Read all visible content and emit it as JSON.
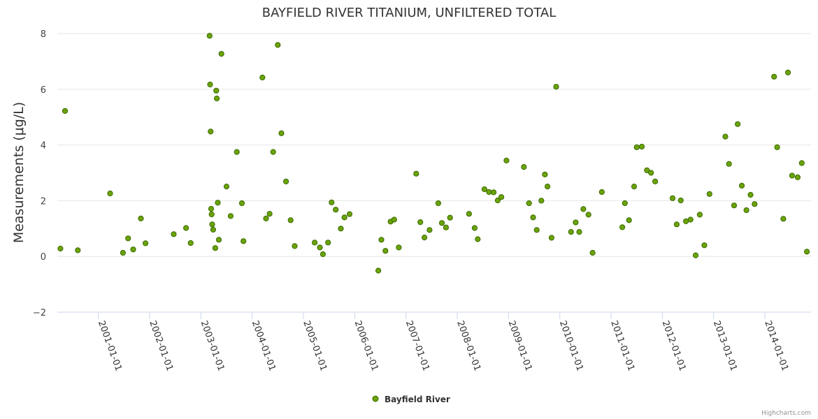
{
  "chart_data": {
    "type": "scatter",
    "title": "BAYFIELD RIVER TITANIUM, UNFILTERED TOTAL",
    "xlabel": "",
    "ylabel": "Measurements (μg/L)",
    "ylim": [
      -2,
      8
    ],
    "yticks": [
      "−2",
      "0",
      "2",
      "4",
      "6",
      "8"
    ],
    "yticks_values": [
      -2,
      0,
      2,
      4,
      6,
      8
    ],
    "xlim": [
      2000.2,
      2014.9
    ],
    "xticks": [
      "2001-01-01",
      "2002-01-01",
      "2003-01-01",
      "2004-01-01",
      "2005-01-01",
      "2006-01-01",
      "2007-01-01",
      "2008-01-01",
      "2009-01-01",
      "2010-01-01",
      "2011-01-01",
      "2012-01-01",
      "2013-01-01",
      "2014-01-01"
    ],
    "xticks_values": [
      2001,
      2002,
      2003,
      2004,
      2005,
      2006,
      2007,
      2008,
      2009,
      2010,
      2011,
      2012,
      2013,
      2014
    ],
    "grid": true,
    "legend_position": "bottom-center",
    "series": [
      {
        "name": "Bayfield River",
        "color": "#6aa30a",
        "edge_color": "#3c6b00",
        "x": [
          2000.26,
          2000.35,
          2000.6,
          2001.23,
          2001.48,
          2001.58,
          2001.68,
          2001.83,
          2001.92,
          2002.47,
          2002.71,
          2002.8,
          2003.17,
          2003.18,
          2003.19,
          2003.2,
          2003.21,
          2003.22,
          2003.24,
          2003.28,
          2003.3,
          2003.31,
          2003.33,
          2003.35,
          2003.4,
          2003.5,
          2003.58,
          2003.7,
          2003.8,
          2003.83,
          2004.2,
          2004.27,
          2004.34,
          2004.41,
          2004.5,
          2004.57,
          2004.66,
          2004.75,
          2004.83,
          2005.22,
          2005.32,
          2005.38,
          2005.48,
          2005.55,
          2005.63,
          2005.73,
          2005.8,
          2005.9,
          2006.46,
          2006.52,
          2006.6,
          2006.7,
          2006.77,
          2006.86,
          2007.2,
          2007.28,
          2007.36,
          2007.46,
          2007.63,
          2007.7,
          2007.78,
          2007.86,
          2008.23,
          2008.34,
          2008.4,
          2008.53,
          2008.62,
          2008.71,
          2008.79,
          2008.86,
          2008.96,
          2009.3,
          2009.4,
          2009.48,
          2009.55,
          2009.64,
          2009.71,
          2009.76,
          2009.84,
          2009.93,
          2010.22,
          2010.31,
          2010.38,
          2010.46,
          2010.56,
          2010.64,
          2010.82,
          2011.22,
          2011.27,
          2011.35,
          2011.45,
          2011.5,
          2011.6,
          2011.7,
          2011.78,
          2011.86,
          2012.2,
          2012.28,
          2012.36,
          2012.46,
          2012.55,
          2012.65,
          2012.73,
          2012.82,
          2012.92,
          2013.23,
          2013.3,
          2013.4,
          2013.47,
          2013.55,
          2013.64,
          2013.72,
          2013.8,
          2014.18,
          2014.24,
          2014.36,
          2014.45,
          2014.53,
          2014.64,
          2014.72,
          2014.82
        ],
        "y": [
          0.28,
          5.22,
          0.22,
          2.26,
          0.13,
          0.65,
          0.25,
          1.36,
          0.47,
          0.8,
          1.02,
          0.48,
          7.92,
          6.17,
          4.48,
          1.71,
          1.51,
          1.15,
          0.96,
          0.3,
          5.95,
          5.67,
          1.93,
          0.6,
          7.27,
          2.51,
          1.45,
          3.75,
          1.91,
          0.55,
          6.42,
          1.36,
          1.53,
          3.75,
          7.59,
          4.42,
          2.69,
          1.3,
          0.37,
          0.5,
          0.32,
          0.08,
          0.5,
          1.94,
          1.68,
          1.0,
          1.4,
          1.52,
          -0.51,
          0.6,
          0.2,
          1.25,
          1.32,
          0.32,
          2.97,
          1.23,
          0.68,
          0.95,
          1.91,
          1.2,
          1.04,
          1.39,
          1.53,
          1.02,
          0.62,
          2.41,
          2.31,
          2.3,
          2.01,
          2.13,
          3.44,
          3.21,
          1.91,
          1.4,
          0.95,
          2.0,
          2.94,
          2.51,
          0.67,
          6.09,
          0.88,
          1.22,
          0.88,
          1.7,
          1.5,
          0.13,
          2.31,
          1.05,
          1.91,
          1.3,
          2.51,
          3.92,
          3.94,
          3.09,
          3.0,
          2.69,
          2.09,
          1.15,
          2.01,
          1.26,
          1.32,
          0.04,
          1.5,
          0.4,
          2.24,
          4.3,
          3.32,
          1.83,
          4.75,
          2.54,
          1.66,
          2.21,
          1.88,
          6.45,
          3.92,
          1.35,
          6.6,
          2.9,
          2.84,
          3.35,
          0.17
        ]
      }
    ]
  },
  "credits": "Highcharts.com"
}
